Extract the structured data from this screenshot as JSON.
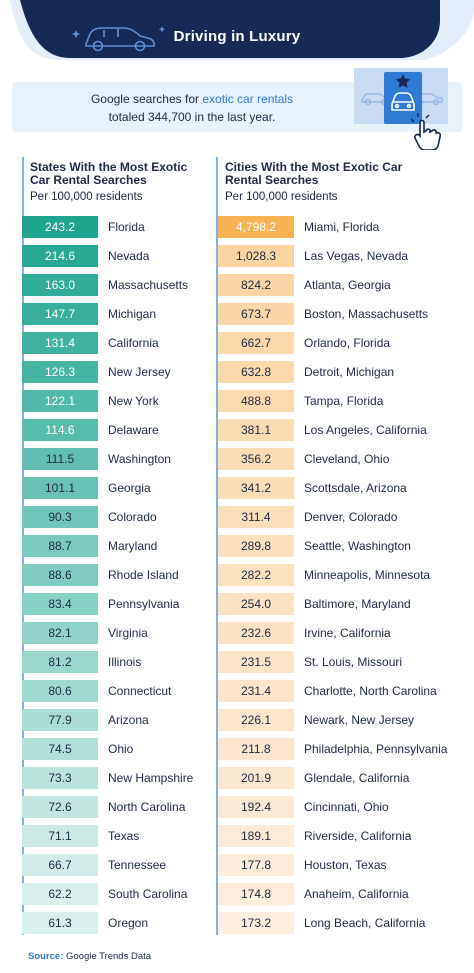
{
  "header": {
    "title": "Driving in Luxury"
  },
  "intro": {
    "line1_prefix": "Google searches for ",
    "line1_highlight": "exotic car rentals",
    "line2": "totaled  344,700 in the last year."
  },
  "colors": {
    "navy": "#152a55",
    "light_blue": "#e8f2fb",
    "accent_blue": "#2f7ad3",
    "state_dark": "#1fa58f",
    "state_light": "#d9f0ec",
    "city_dark": "#f7b254",
    "city_light": "#fdeede"
  },
  "icons": [
    "car-icon",
    "car-card-icon",
    "star-icon",
    "hand-pointer-icon"
  ],
  "source": {
    "label": "Source:",
    "text": "Google Trends Data"
  },
  "chart_data": [
    {
      "type": "table",
      "title": "States With the Most Exotic Car Rental Searches",
      "subtitle": "Per 100,000 residents",
      "rows": [
        {
          "value": "243.2",
          "label": "Florida"
        },
        {
          "value": "214.6",
          "label": "Nevada"
        },
        {
          "value": "163.0",
          "label": "Massachusetts"
        },
        {
          "value": "147.7",
          "label": "Michigan"
        },
        {
          "value": "131.4",
          "label": "California"
        },
        {
          "value": "126.3",
          "label": "New Jersey"
        },
        {
          "value": "122.1",
          "label": "New York"
        },
        {
          "value": "114.6",
          "label": "Delaware"
        },
        {
          "value": "111.5",
          "label": "Washington"
        },
        {
          "value": "101.1",
          "label": "Georgia"
        },
        {
          "value": "90.3",
          "label": "Colorado"
        },
        {
          "value": "88.7",
          "label": "Maryland"
        },
        {
          "value": "88.6",
          "label": "Rhode Island"
        },
        {
          "value": "83.4",
          "label": "Pennsylvania"
        },
        {
          "value": "82.1",
          "label": "Virginia"
        },
        {
          "value": "81.2",
          "label": "Illinois"
        },
        {
          "value": "80.6",
          "label": "Connecticut"
        },
        {
          "value": "77.9",
          "label": "Arizona"
        },
        {
          "value": "74.5",
          "label": "Ohio"
        },
        {
          "value": "73.3",
          "label": "New Hampshire"
        },
        {
          "value": "72.6",
          "label": "North Carolina"
        },
        {
          "value": "71.1",
          "label": "Texas"
        },
        {
          "value": "66.7",
          "label": "Tennessee"
        },
        {
          "value": "62.2",
          "label": "South Carolina"
        },
        {
          "value": "61.3",
          "label": "Oregon"
        }
      ]
    },
    {
      "type": "table",
      "title": "Cities With the Most Exotic Car Rental Searches",
      "subtitle": "Per 100,000 residents",
      "rows": [
        {
          "value": "4,798.2",
          "label": "Miami, Florida"
        },
        {
          "value": "1,028.3",
          "label": "Las Vegas, Nevada"
        },
        {
          "value": "824.2",
          "label": "Atlanta, Georgia"
        },
        {
          "value": "673.7",
          "label": "Boston, Massachusetts"
        },
        {
          "value": "662.7",
          "label": "Orlando, Florida"
        },
        {
          "value": "632.8",
          "label": "Detroit, Michigan"
        },
        {
          "value": "488.8",
          "label": "Tampa, Florida"
        },
        {
          "value": "381.1",
          "label": "Los Angeles, California"
        },
        {
          "value": "356.2",
          "label": "Cleveland, Ohio"
        },
        {
          "value": "341.2",
          "label": "Scottsdale, Arizona"
        },
        {
          "value": "311.4",
          "label": "Denver, Colorado"
        },
        {
          "value": "289.8",
          "label": "Seattle, Washington"
        },
        {
          "value": "282.2",
          "label": "Minneapolis, Minnesota"
        },
        {
          "value": "254.0",
          "label": "Baltimore, Maryland"
        },
        {
          "value": "232.6",
          "label": "Irvine, California"
        },
        {
          "value": "231.5",
          "label": "St. Louis, Missouri"
        },
        {
          "value": "231.4",
          "label": "Charlotte, North Carolina"
        },
        {
          "value": "226.1",
          "label": "Newark, New Jersey"
        },
        {
          "value": "211.8",
          "label": "Philadelphia, Pennsylvania"
        },
        {
          "value": "201.9",
          "label": "Glendale, California"
        },
        {
          "value": "192.4",
          "label": "Cincinnati, Ohio"
        },
        {
          "value": "189.1",
          "label": "Riverside, California"
        },
        {
          "value": "177.8",
          "label": "Houston, Texas"
        },
        {
          "value": "174.8",
          "label": "Anaheim, California"
        },
        {
          "value": "173.2",
          "label": "Long Beach, California"
        }
      ]
    }
  ]
}
